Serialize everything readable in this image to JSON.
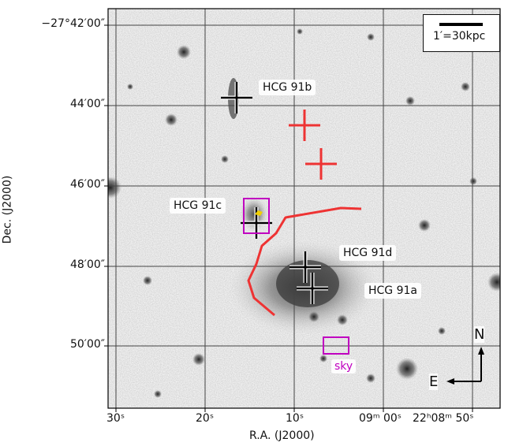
{
  "axes": {
    "ylabel": "Dec. (J2000)",
    "xlabel": "R.A. (J2000)",
    "yticks": [
      "−27°42′00″",
      "44′00″",
      "46′00″",
      "48′00″",
      "50′00″"
    ],
    "xticks": [
      "30ˢ",
      "20ˢ",
      "10ˢ",
      "09ᵐ 00ˢ",
      "22ʰ08ᵐ 50ˢ"
    ]
  },
  "galaxies": [
    {
      "name": "HCG 91b"
    },
    {
      "name": "HCG 91c"
    },
    {
      "name": "HCG 91d"
    },
    {
      "name": "HCG 91a"
    }
  ],
  "sky_label": "sky",
  "scale": {
    "text": "1′=30kpc"
  },
  "compass": {
    "north": "N",
    "east": "E"
  },
  "colors": {
    "marker_black": "#000000",
    "marker_red": "#ee3333",
    "slit_red": "#ee3333",
    "box_magenta": "#c000c0",
    "highlight_yellow": "#f0d000",
    "grid": "#444444"
  }
}
